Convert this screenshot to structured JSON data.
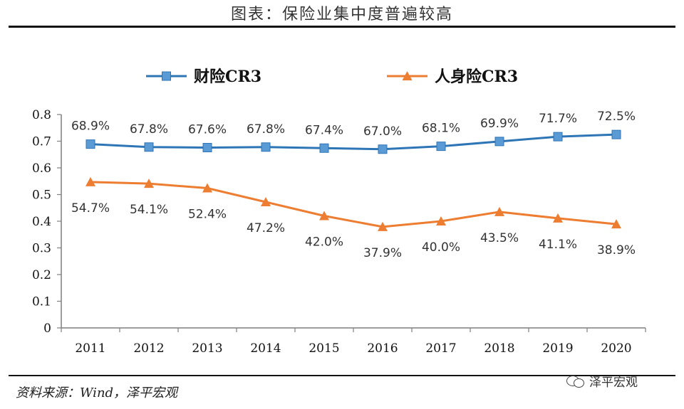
{
  "header": {
    "title": "图表：保险业集中度普遍较高"
  },
  "footer": {
    "source": "资料来源：Wind，泽平宏观",
    "watermark": "泽平宏观"
  },
  "colors": {
    "series1": "#2E75B6",
    "series1_marker": "#5B9BD5",
    "series2": "#ED7D31",
    "axis": "#7f7f7f"
  },
  "chart_data": {
    "type": "line",
    "x": [
      "2011",
      "2012",
      "2013",
      "2014",
      "2015",
      "2016",
      "2017",
      "2018",
      "2019",
      "2020"
    ],
    "ylim": [
      0,
      0.8
    ],
    "yticks": [
      "0",
      "0.1",
      "0.2",
      "0.3",
      "0.4",
      "0.5",
      "0.6",
      "0.7",
      "0.8"
    ],
    "grid": false,
    "legend": "top-center",
    "series": [
      {
        "name": "财险CR3",
        "marker": "square",
        "values": [
          0.689,
          0.678,
          0.676,
          0.678,
          0.674,
          0.67,
          0.681,
          0.699,
          0.717,
          0.725
        ],
        "labels": [
          "68.9%",
          "67.8%",
          "67.6%",
          "67.8%",
          "67.4%",
          "67.0%",
          "68.1%",
          "69.9%",
          "71.7%",
          "72.5%"
        ]
      },
      {
        "name": "人身险CR3",
        "marker": "triangle",
        "values": [
          0.547,
          0.541,
          0.524,
          0.472,
          0.42,
          0.379,
          0.4,
          0.435,
          0.411,
          0.389
        ],
        "labels": [
          "54.7%",
          "54.1%",
          "52.4%",
          "47.2%",
          "42.0%",
          "37.9%",
          "40.0%",
          "43.5%",
          "41.1%",
          "38.9%"
        ]
      }
    ]
  }
}
